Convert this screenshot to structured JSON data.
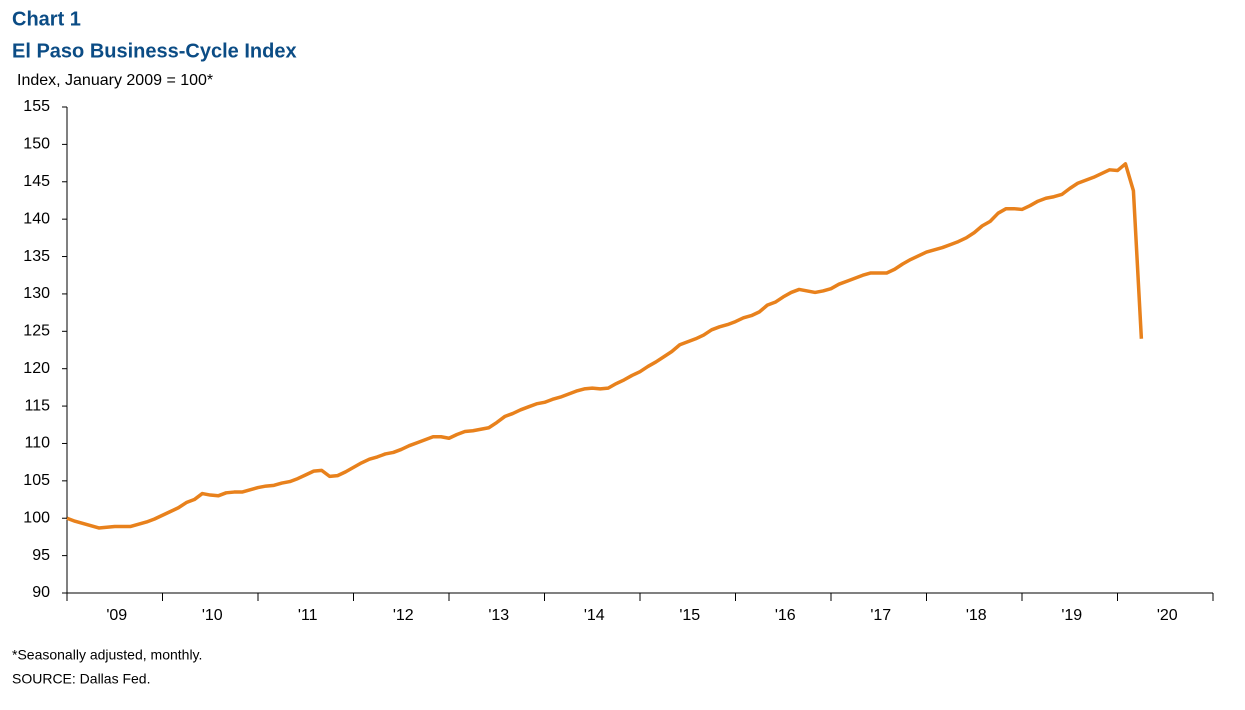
{
  "chart_data": {
    "type": "line",
    "title": "Chart 1",
    "subtitle": "El Paso Business-Cycle Index",
    "y_label": "Index, January 2009 = 100*",
    "footnote": "*Seasonally adjusted, monthly.",
    "source": "SOURCE:  Dallas Fed.",
    "color": "#E8811C",
    "ylim": [
      90,
      155
    ],
    "yticks": [
      90,
      95,
      100,
      105,
      110,
      115,
      120,
      125,
      130,
      135,
      140,
      145,
      150,
      155
    ],
    "categories": [
      null,
      null,
      null,
      null,
      null,
      null,
      "'09",
      null,
      null,
      null,
      null,
      null,
      null,
      null,
      null,
      null,
      null,
      null,
      "'10",
      null,
      null,
      null,
      null,
      null,
      null,
      null,
      null,
      null,
      null,
      null,
      "'11",
      null,
      null,
      null,
      null,
      null,
      null,
      null,
      null,
      null,
      null,
      null,
      "'12",
      null,
      null,
      null,
      null,
      null,
      null,
      null,
      null,
      null,
      null,
      null,
      "'13",
      null,
      null,
      null,
      null,
      null,
      null,
      null,
      null,
      null,
      null,
      null,
      "'14",
      null,
      null,
      null,
      null,
      null,
      null,
      null,
      null,
      null,
      null,
      null,
      "'15",
      null,
      null,
      null,
      null,
      null,
      null,
      null,
      null,
      null,
      null,
      null,
      "'16",
      null,
      null,
      null,
      null,
      null,
      null,
      null,
      null,
      null,
      null,
      null,
      "'17",
      null,
      null,
      null,
      null,
      null,
      null,
      null,
      null,
      null,
      null,
      null,
      "'18",
      null,
      null,
      null,
      null,
      null,
      null,
      null,
      null,
      null,
      null,
      null,
      "'19",
      null,
      null,
      null,
      null,
      null,
      null,
      null,
      null,
      null,
      null,
      null,
      "'20",
      null,
      null,
      null,
      null,
      null,
      null
    ],
    "values": [
      100.0,
      99.6,
      99.3,
      99.0,
      98.7,
      98.8,
      98.9,
      98.9,
      98.9,
      99.2,
      99.5,
      99.9,
      100.4,
      100.9,
      101.4,
      102.1,
      102.5,
      103.3,
      103.1,
      103.0,
      103.4,
      103.5,
      103.5,
      103.8,
      104.1,
      104.3,
      104.4,
      104.7,
      104.9,
      105.3,
      105.8,
      106.3,
      106.4,
      105.6,
      105.7,
      106.2,
      106.8,
      107.4,
      107.9,
      108.2,
      108.6,
      108.8,
      109.2,
      109.7,
      110.1,
      110.5,
      110.9,
      110.9,
      110.7,
      111.2,
      111.6,
      111.7,
      111.9,
      112.1,
      112.8,
      113.6,
      114.0,
      114.5,
      114.9,
      115.3,
      115.5,
      115.9,
      116.2,
      116.6,
      117.0,
      117.3,
      117.4,
      117.3,
      117.4,
      118.0,
      118.5,
      119.1,
      119.6,
      120.3,
      120.9,
      121.6,
      122.3,
      123.2,
      123.6,
      124.0,
      124.5,
      125.2,
      125.6,
      125.9,
      126.3,
      126.8,
      127.1,
      127.6,
      128.5,
      128.9,
      129.6,
      130.2,
      130.6,
      130.4,
      130.2,
      130.4,
      130.7,
      131.3,
      131.7,
      132.1,
      132.5,
      132.8,
      132.8,
      132.8,
      133.3,
      134.0,
      134.6,
      135.1,
      135.6,
      135.9,
      136.2,
      136.6,
      137.0,
      137.5,
      138.2,
      139.1,
      139.7,
      140.8,
      141.4,
      141.4,
      141.3,
      141.8,
      142.4,
      142.8,
      143.0,
      143.3,
      144.1,
      144.8,
      145.2,
      145.6,
      146.1,
      146.6,
      146.5,
      147.4,
      143.8,
      124.0,
      null,
      null,
      null,
      null,
      null,
      null,
      null,
      null,
      null
    ]
  }
}
